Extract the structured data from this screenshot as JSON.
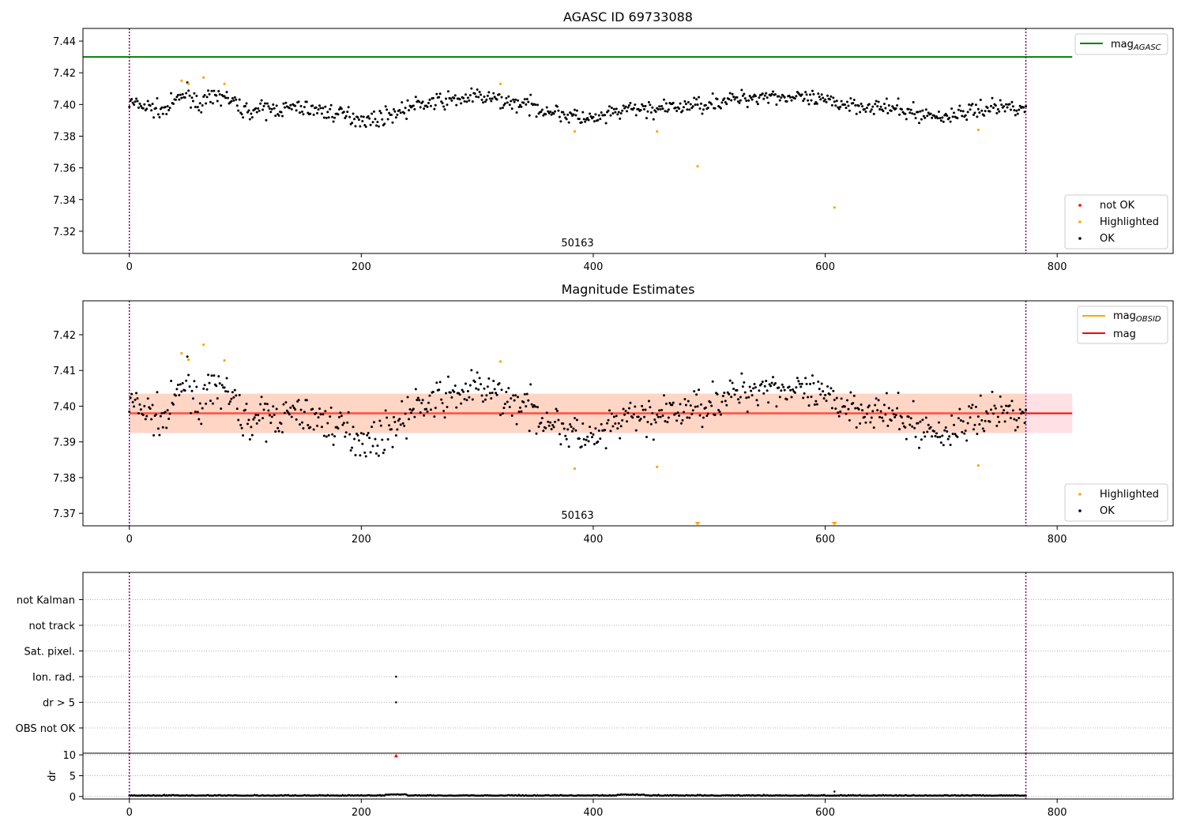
{
  "colors": {
    "ok": "#000000",
    "highlighted": "#ffa500",
    "not_ok": "#ff0000",
    "mag_agasc": "#008000",
    "mag_obsid": "#ffa500",
    "mag": "#ff0000",
    "vline": "#800080",
    "band_outer": "#ffe0e4",
    "band_inner": "#ffd6c6",
    "grid": "#b0b0b0"
  },
  "chart_data": [
    {
      "id": "top",
      "type": "scatter",
      "title": "AGASC ID 69733088",
      "xlim": [
        -40,
        900
      ],
      "ylim": [
        7.306,
        7.448
      ],
      "xticks": [
        0,
        200,
        400,
        600,
        800
      ],
      "yticks": [
        7.32,
        7.34,
        7.36,
        7.38,
        7.4,
        7.42,
        7.44
      ],
      "obsid_label": "50163",
      "obsid_label_x": 386,
      "vlines": [
        0,
        773
      ],
      "hlines": [
        {
          "name": "mag_AGASC",
          "y": 7.43,
          "x_end": 813,
          "color": "#008000"
        }
      ],
      "legend_lines": [
        {
          "label": "mag",
          "sub": "AGASC",
          "color": "#008000"
        }
      ],
      "legend_points": [
        {
          "label": "not OK",
          "color": "#ff0000"
        },
        {
          "label": "Highlighted",
          "color": "#ffa500"
        },
        {
          "label": "OK",
          "color": "#000000"
        }
      ],
      "highlighted": [
        [
          45,
          7.415
        ],
        [
          51,
          7.413
        ],
        [
          64,
          7.417
        ],
        [
          82,
          7.413
        ],
        [
          320,
          7.413
        ],
        [
          384,
          7.383
        ],
        [
          455,
          7.383
        ],
        [
          490,
          7.361
        ],
        [
          608,
          7.335
        ],
        [
          732,
          7.384
        ]
      ]
    },
    {
      "id": "mid",
      "type": "scatter",
      "title": "Magnitude Estimates",
      "xlim": [
        -40,
        900
      ],
      "ylim": [
        7.3665,
        7.4295
      ],
      "xticks": [
        0,
        200,
        400,
        600,
        800
      ],
      "yticks": [
        7.37,
        7.38,
        7.39,
        7.4,
        7.41,
        7.42
      ],
      "obsid_label": "50163",
      "obsid_label_x": 386,
      "vlines": [
        0,
        773
      ],
      "mag": 7.398,
      "mag_band_inner": [
        7.3925,
        7.4035
      ],
      "mag_band_outer": [
        7.3925,
        7.4035
      ],
      "band_x_end": 813,
      "legend_lines": [
        {
          "label": "mag",
          "sub": "OBSID",
          "color": "#ffa500"
        },
        {
          "label": "mag",
          "sub": "",
          "color": "#ff0000"
        }
      ],
      "legend_points": [
        {
          "label": "Highlighted",
          "color": "#ffa500"
        },
        {
          "label": "OK",
          "color": "#000000"
        }
      ],
      "highlighted": [
        [
          45,
          7.4148
        ],
        [
          51,
          7.413
        ],
        [
          64,
          7.4172
        ],
        [
          82,
          7.4128
        ],
        [
          320,
          7.4125
        ],
        [
          384,
          7.3825
        ],
        [
          455,
          7.383
        ],
        [
          732,
          7.3834
        ]
      ],
      "below_axis_markers": [
        490,
        608
      ]
    },
    {
      "id": "flags",
      "type": "scatter",
      "categories": [
        "OBS not OK",
        "dr > 5",
        "Ion. rad.",
        "Sat. pixel.",
        "not track",
        "not Kalman"
      ],
      "xlim": [
        -40,
        900
      ],
      "vlines": [
        0,
        773
      ],
      "points": [
        [
          230,
          "dr > 5"
        ],
        [
          230,
          "Ion. rad."
        ]
      ]
    },
    {
      "id": "dr",
      "type": "scatter",
      "ylabel": "dr",
      "xlim": [
        -40,
        900
      ],
      "ylim": [
        -0.6,
        10.4
      ],
      "yticks": [
        0,
        5,
        10
      ],
      "xticks": [
        0,
        200,
        400,
        600,
        800
      ],
      "vlines": [
        0,
        773
      ],
      "spikes": [
        [
          230,
          9.8
        ],
        [
          608,
          1.2
        ]
      ]
    }
  ]
}
